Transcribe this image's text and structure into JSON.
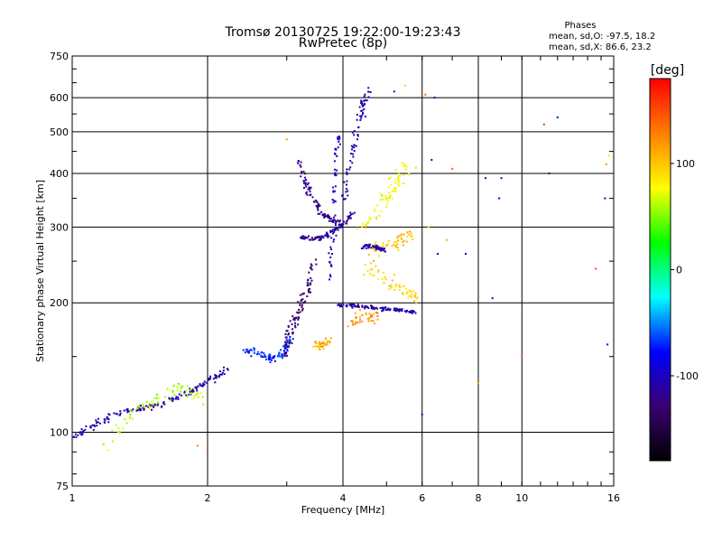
{
  "chart_data": {
    "type": "scatter",
    "title": "Tromsø 20130725 19:22:00-19:23:43",
    "subtitle": "RwPretec (8p)",
    "xlabel": "Frequency [MHz]",
    "ylabel": "Stationary phase Virtual Height [km]",
    "xscale": "log",
    "yscale": "log",
    "xlim": [
      1,
      16
    ],
    "ylim": [
      75,
      750
    ],
    "xticks": [
      1,
      2,
      4,
      6,
      8,
      10,
      16
    ],
    "yticks": [
      75,
      100,
      200,
      300,
      400,
      500,
      600,
      750
    ],
    "grid": true,
    "stats": {
      "heading": "Phases",
      "line1": "mean, sd,O: -97.5, 18.2",
      "line2": "mean, sd,X:  86.6, 23.2"
    },
    "colorbar": {
      "label": "[deg]",
      "range": [
        -180,
        180
      ],
      "ticks": [
        100,
        0,
        -100
      ],
      "tick_labels": [
        "100",
        "0",
        "-100"
      ],
      "colormap": [
        "#000000",
        "#3a0070",
        "#0000ff",
        "#00ffff",
        "#00ff00",
        "#ffff00",
        "#ff8000",
        "#ff0000"
      ]
    },
    "traces": [
      {
        "x": [
          1.0,
          1.08,
          1.18,
          1.3,
          1.45,
          1.6,
          1.75,
          1.9,
          2.05,
          2.2
        ],
        "y": [
          97,
          102,
          107,
          112,
          114,
          117,
          122,
          127,
          133,
          140
        ],
        "phase": -110,
        "spread": 0.025
      },
      {
        "x": [
          1.2,
          1.38,
          1.55,
          1.75,
          1.95
        ],
        "y": [
          94,
          113,
          120,
          128,
          118
        ],
        "phase": 60,
        "spread": 0.05
      },
      {
        "x": [
          2.4,
          2.6,
          2.75,
          2.9,
          3.0,
          3.05
        ],
        "y": [
          155,
          152,
          148,
          150,
          157,
          165
        ],
        "phase": -70,
        "spread": 0.03
      },
      {
        "x": [
          2.95,
          3.05,
          3.15,
          3.25,
          3.35,
          3.45
        ],
        "y": [
          150,
          170,
          185,
          200,
          220,
          250
        ],
        "phase": -130,
        "spread": 0.035
      },
      {
        "x": [
          3.2,
          3.4,
          3.6,
          3.8,
          4.0,
          4.2
        ],
        "y": [
          285,
          282,
          285,
          292,
          305,
          325
        ],
        "phase": -115,
        "spread": 0.02
      },
      {
        "x": [
          3.2,
          3.3,
          3.45,
          3.6,
          3.8,
          4.0
        ],
        "y": [
          430,
          380,
          345,
          320,
          310,
          305
        ],
        "phase": -120,
        "spread": 0.025
      },
      {
        "x": [
          4.0,
          4.15,
          4.3,
          4.45,
          4.6
        ],
        "y": [
          350,
          420,
          500,
          580,
          630
        ],
        "phase": -105,
        "spread": 0.03
      },
      {
        "x": [
          3.9,
          4.2,
          4.5,
          4.8,
          5.1,
          5.4,
          5.8
        ],
        "y": [
          198,
          197,
          196,
          194,
          193,
          192,
          190
        ],
        "phase": -110,
        "spread": 0.015
      },
      {
        "x": [
          3.75,
          3.8,
          3.85,
          3.9
        ],
        "y": [
          230,
          300,
          400,
          500
        ],
        "phase": -100,
        "spread": 0.02
      },
      {
        "x": [
          4.5,
          4.8,
          5.1,
          5.3,
          5.6
        ],
        "y": [
          300,
          330,
          360,
          390,
          420
        ],
        "phase": 80,
        "spread": 0.05
      },
      {
        "x": [
          4.6,
          5.0,
          5.4,
          5.8
        ],
        "y": [
          260,
          270,
          280,
          290
        ],
        "phase": 100,
        "spread": 0.05
      },
      {
        "x": [
          4.4,
          4.6,
          4.8,
          5.0
        ],
        "y": [
          270,
          272,
          268,
          265
        ],
        "phase": -110,
        "spread": 0.02
      },
      {
        "x": [
          3.5,
          3.6,
          3.7
        ],
        "y": [
          160,
          158,
          165
        ],
        "phase": 110,
        "spread": 0.03
      },
      {
        "x": [
          4.5,
          5.0,
          5.5,
          5.8
        ],
        "y": [
          240,
          225,
          215,
          205
        ],
        "phase": 95,
        "spread": 0.05
      },
      {
        "x": [
          4.2,
          4.5,
          4.8
        ],
        "y": [
          180,
          185,
          190
        ],
        "phase": 120,
        "spread": 0.06
      }
    ],
    "sparse": [
      {
        "x": 6.0,
        "y": 110,
        "phase": -100
      },
      {
        "x": 6.2,
        "y": 300,
        "phase": 80
      },
      {
        "x": 6.5,
        "y": 260,
        "phase": -110
      },
      {
        "x": 6.8,
        "y": 280,
        "phase": 40
      },
      {
        "x": 7.5,
        "y": 260,
        "phase": -100
      },
      {
        "x": 8.0,
        "y": 130,
        "phase": 120
      },
      {
        "x": 8.3,
        "y": 390,
        "phase": -100
      },
      {
        "x": 8.9,
        "y": 350,
        "phase": -90
      },
      {
        "x": 9.0,
        "y": 390,
        "phase": -100
      },
      {
        "x": 8.6,
        "y": 205,
        "phase": -110
      },
      {
        "x": 10.0,
        "y": 150,
        "phase": 150
      },
      {
        "x": 11.2,
        "y": 520,
        "phase": 160
      },
      {
        "x": 11.5,
        "y": 400,
        "phase": -130
      },
      {
        "x": 12.0,
        "y": 540,
        "phase": -80
      },
      {
        "x": 14.6,
        "y": 240,
        "phase": 150
      },
      {
        "x": 15.3,
        "y": 350,
        "phase": -100
      },
      {
        "x": 15.4,
        "y": 420,
        "phase": 120
      },
      {
        "x": 15.5,
        "y": 160,
        "phase": -90
      },
      {
        "x": 15.6,
        "y": 440,
        "phase": 90
      },
      {
        "x": 6.1,
        "y": 610,
        "phase": 140
      },
      {
        "x": 6.4,
        "y": 600,
        "phase": -110
      },
      {
        "x": 7.0,
        "y": 410,
        "phase": 140
      },
      {
        "x": 6.3,
        "y": 430,
        "phase": -100
      },
      {
        "x": 3.0,
        "y": 480,
        "phase": 120
      },
      {
        "x": 5.5,
        "y": 640,
        "phase": 60
      },
      {
        "x": 5.2,
        "y": 620,
        "phase": -100
      },
      {
        "x": 1.9,
        "y": 93,
        "phase": 130
      },
      {
        "x": 2.0,
        "y": 90,
        "phase": 150
      }
    ]
  }
}
